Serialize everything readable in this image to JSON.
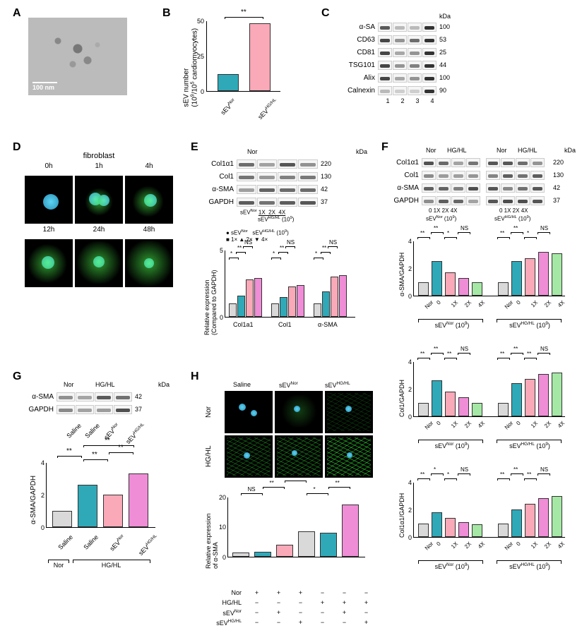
{
  "labels": {
    "A": "A",
    "B": "B",
    "C": "C",
    "D": "D",
    "E": "E",
    "F": "F",
    "G": "G",
    "H": "H"
  },
  "colors": {
    "gray": "#d9d9d9",
    "teal": "#2fa9b8",
    "pink": "#f9a9b8",
    "magenta": "#ef8dd6",
    "green": "#a5e8a5",
    "bg": "#ffffff",
    "axis": "#000000"
  },
  "A": {
    "scalebar": "100 nm"
  },
  "B": {
    "type": "bar",
    "ylabel": "sEV number\n(10⁹/10⁵ cardiomyocytes)",
    "ylim": [
      0,
      50
    ],
    "yticks": [
      0,
      25,
      50
    ],
    "categories": [
      "sEVᴺᵒʳ",
      "sEVᴴᴳ/ᴴᴸ"
    ],
    "values": [
      12,
      48
    ],
    "bar_colors": [
      "#2fa9b8",
      "#f9a9b8"
    ],
    "sig": "**"
  },
  "C": {
    "kda_header": "kDa",
    "rows": [
      {
        "name": "α-SA",
        "kda": "100",
        "bands": [
          0.8,
          0.3,
          0.3,
          1.0
        ]
      },
      {
        "name": "CD63",
        "kda": "53",
        "bands": [
          0.9,
          0.5,
          0.7,
          1.0
        ]
      },
      {
        "name": "CD81",
        "kda": "25",
        "bands": [
          0.9,
          0.4,
          0.5,
          1.0
        ]
      },
      {
        "name": "TSG101",
        "kda": "44",
        "bands": [
          0.9,
          0.5,
          0.6,
          1.0
        ]
      },
      {
        "name": "Alix",
        "kda": "100",
        "bands": [
          0.9,
          0.4,
          0.5,
          1.0
        ]
      },
      {
        "name": "Calnexin",
        "kda": "90",
        "bands": [
          0.3,
          0.2,
          0.2,
          1.0
        ]
      }
    ],
    "lane_nums": [
      "1",
      "2",
      "3",
      "4"
    ]
  },
  "D": {
    "title": "fibroblast",
    "times": [
      "0h",
      "1h",
      "4h",
      "12h",
      "24h",
      "48h"
    ]
  },
  "E": {
    "header_groups": [
      "Nor",
      ""
    ],
    "kda": "kDa",
    "blot": [
      {
        "name": "Col1α1",
        "kda": "220"
      },
      {
        "name": "Col1",
        "kda": "130"
      },
      {
        "name": "α-SMA",
        "kda": "42"
      },
      {
        "name": "GAPDH",
        "kda": "37"
      }
    ],
    "xaxis_top": "sEVᴺᵒʳ  1X  2X  4X",
    "xaxis_sub": "sEVᴴᴳ/ᴴᴸ (10⁹)",
    "chart": {
      "ylabel": "Relative expression\n(Compared to GAPDH)",
      "ylim": [
        0,
        5
      ],
      "yticks": [
        0,
        5
      ],
      "groups": [
        "Col1a1",
        "Col1",
        "α-SMA"
      ],
      "legend": [
        "sEVᴺᵒʳ",
        "1×",
        "2×",
        "4×"
      ],
      "series_colors": [
        "#d9d9d9",
        "#2fa9b8",
        "#f9a9b8",
        "#ef8dd6"
      ],
      "sig": [
        "*",
        "**",
        "NS",
        "*",
        "**",
        "NS",
        "*",
        "**",
        "NS"
      ],
      "legend_title": "sEVᴴᴳ/ᴴᴸ (10⁹)",
      "values": [
        [
          1.0,
          1.6,
          2.8,
          2.9
        ],
        [
          1.0,
          1.5,
          2.3,
          2.4
        ],
        [
          1.0,
          1.9,
          3.0,
          3.1
        ]
      ]
    }
  },
  "F": {
    "header_left": "Nor",
    "header_right": "HG/HL",
    "kda": "kDa",
    "blot": [
      {
        "name": "Col1α1",
        "kda": "220"
      },
      {
        "name": "Col1",
        "kda": "130"
      },
      {
        "name": "α-SMA",
        "kda": "42"
      },
      {
        "name": "GAPDH",
        "kda": "37"
      }
    ],
    "dose_row": "0  1X  2X  4X",
    "dose_label_left": "sEVᴺᵒʳ (10⁹)",
    "dose_label_right": "sEVᴴᴳ/ᴴᴸ (10⁹)",
    "charts": [
      {
        "ylabel": "α-SMA/GAPDH",
        "ylim": [
          0,
          4
        ],
        "yticks": [
          0,
          2,
          4
        ],
        "values": [
          1.0,
          2.5,
          1.7,
          1.3,
          1.0,
          1.0,
          2.5,
          2.7,
          3.2,
          3.1
        ],
        "sig": [
          "**",
          "**",
          "*",
          "NS",
          "**",
          "**",
          "*",
          "NS"
        ]
      },
      {
        "ylabel": "Col1/GAPDH",
        "ylim": [
          0,
          4
        ],
        "yticks": [
          0,
          2,
          4
        ],
        "values": [
          1.0,
          2.6,
          1.8,
          1.4,
          1.0,
          1.0,
          2.4,
          2.7,
          3.1,
          3.2
        ],
        "sig": [
          "**",
          "**",
          "**",
          "NS",
          "**",
          "**",
          "**",
          "NS"
        ]
      },
      {
        "ylabel": "Col1α1/GAPDH",
        "ylim": [
          0,
          4
        ],
        "yticks": [
          0,
          2,
          4
        ],
        "values": [
          1.0,
          1.8,
          1.4,
          1.1,
          0.9,
          1.0,
          2.0,
          2.4,
          2.8,
          3.0
        ],
        "sig": [
          "**",
          "*",
          "*",
          "NS",
          "**",
          "**",
          "**",
          "NS"
        ]
      }
    ],
    "x_cats": [
      "Nor",
      "0",
      "1X",
      "2X",
      "4X",
      "Nor",
      "0",
      "1X",
      "2X",
      "4X"
    ],
    "bar_colors": [
      "#d9d9d9",
      "#2fa9b8",
      "#f9a9b8",
      "#ef8dd6",
      "#a5e8a5",
      "#d9d9d9",
      "#2fa9b8",
      "#f9a9b8",
      "#ef8dd6",
      "#a5e8a5"
    ]
  },
  "G": {
    "header": [
      "Nor",
      "HG/HL"
    ],
    "kda": "kDa",
    "blot": [
      {
        "name": "α-SMA",
        "kda": "42"
      },
      {
        "name": "GAPDH",
        "kda": "37"
      }
    ],
    "lane_labels": [
      "Saline",
      "Saline",
      "sEVᴺᵒʳ",
      "sEVᴴᴳ/ᴴᴸ"
    ],
    "chart": {
      "ylabel": "α-SMA/GAPDH",
      "ylim": [
        0,
        4
      ],
      "yticks": [
        0,
        2,
        4
      ],
      "values": [
        1.0,
        2.6,
        2.0,
        3.3
      ],
      "bar_colors": [
        "#d9d9d9",
        "#2fa9b8",
        "#f9a9b8",
        "#ef8dd6"
      ],
      "sig": [
        "**",
        "**",
        "**",
        "**"
      ],
      "x_cats": [
        "Saline",
        "Saline",
        "sEVᴺᵒʳ",
        "sEVᴴᴳ/ᴴᴸ"
      ],
      "group_left": "Nor",
      "group_right": "HG/HL"
    }
  },
  "H": {
    "col_headers": [
      "Saline",
      "sEVᴺᵒʳ",
      "sEVᴴᴳ/ᴴᴸ"
    ],
    "row_headers": [
      "Nor",
      "HG/HL"
    ],
    "chart": {
      "ylabel": "Relative expression\nof α-SMA",
      "ylim": [
        0,
        20
      ],
      "yticks": [
        0,
        10,
        20
      ],
      "values": [
        1.5,
        1.6,
        4.0,
        8.5,
        8.0,
        17.5
      ],
      "bar_colors": [
        "#d9d9d9",
        "#2fa9b8",
        "#f9a9b8",
        "#d9d9d9",
        "#2fa9b8",
        "#ef8dd6"
      ],
      "sig": [
        "NS",
        "**",
        "**",
        "*",
        "**"
      ]
    },
    "design_rows": [
      {
        "label": "Nor",
        "marks": [
          "+",
          "+",
          "+",
          "−",
          "−",
          "−"
        ]
      },
      {
        "label": "HG/HL",
        "marks": [
          "−",
          "−",
          "−",
          "+",
          "+",
          "+"
        ]
      },
      {
        "label": "sEVᴺᵒʳ",
        "marks": [
          "−",
          "+",
          "−",
          "−",
          "+",
          "−"
        ]
      },
      {
        "label": "sEVᴴᴳ/ᴴᴸ",
        "marks": [
          "−",
          "−",
          "+",
          "−",
          "−",
          "+"
        ]
      }
    ]
  }
}
